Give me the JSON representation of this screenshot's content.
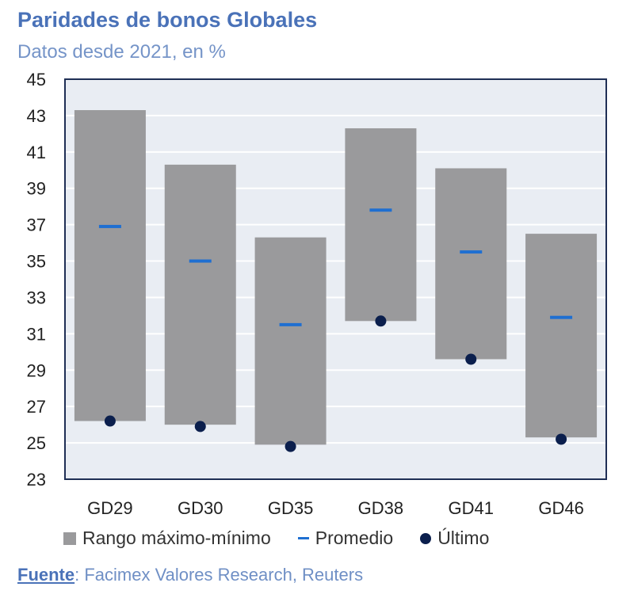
{
  "header": {
    "title": "Paridades de bonos Globales",
    "subtitle": "Datos desde 2021, en %"
  },
  "source": {
    "label": "Fuente",
    "text": ": Facimex Valores Research, Reuters"
  },
  "colors": {
    "range": "#9a9a9c",
    "average": "#1f6fd1",
    "last": "#0b1f4d",
    "plot_bg": "#e9edf3",
    "title": "#4a72b8"
  },
  "chart_data": {
    "type": "bar",
    "title": "Paridades de bonos Globales",
    "subtitle": "Datos desde 2021, en %",
    "categories": [
      "GD29",
      "GD30",
      "GD35",
      "GD38",
      "GD41",
      "GD46"
    ],
    "series": [
      {
        "name": "Rango máximo-mínimo",
        "max": [
          43.3,
          40.3,
          36.3,
          42.3,
          40.1,
          36.5
        ],
        "min": [
          26.2,
          26.0,
          24.9,
          31.7,
          29.6,
          25.3
        ]
      },
      {
        "name": "Promedio",
        "values": [
          36.9,
          35.0,
          31.5,
          37.8,
          35.5,
          31.9
        ]
      },
      {
        "name": "Último",
        "values": [
          26.2,
          25.9,
          24.8,
          31.7,
          29.6,
          25.2
        ]
      }
    ],
    "ylim": [
      23,
      45
    ],
    "yticks": [
      45,
      43,
      41,
      39,
      37,
      35,
      33,
      31,
      29,
      27,
      25,
      23
    ],
    "legend": {
      "position": "bottom",
      "items": [
        "Rango máximo-mínimo",
        "Promedio",
        "Último"
      ]
    },
    "grid": true
  }
}
